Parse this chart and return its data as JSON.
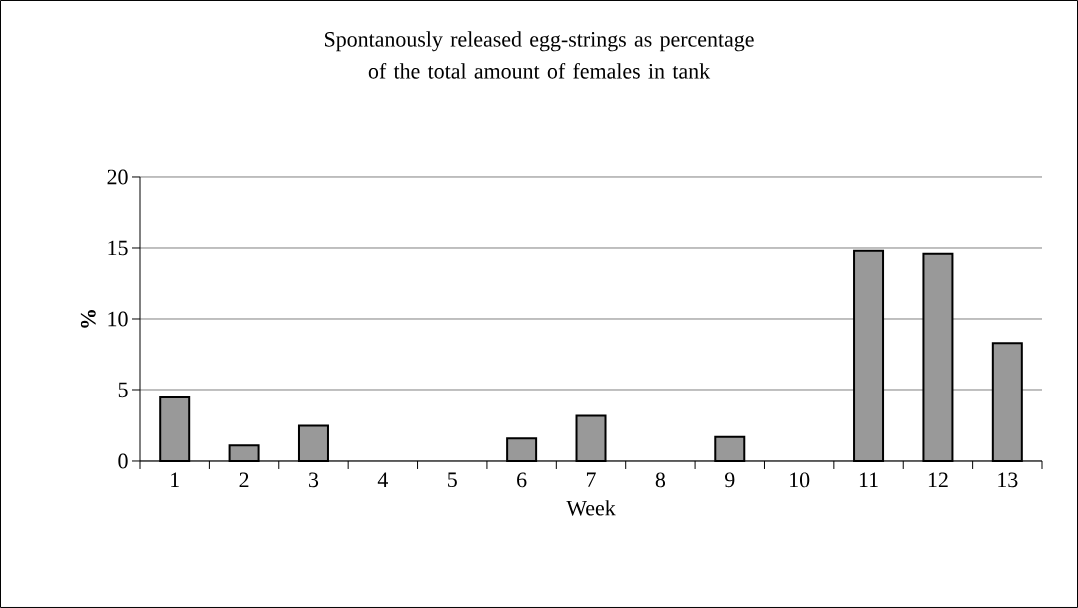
{
  "chart_data": {
    "type": "bar",
    "title": "Spontanously released egg-strings as percentage of the total amount of females in tank",
    "xlabel": "Week",
    "ylabel": "%",
    "categories": [
      "1",
      "2",
      "3",
      "4",
      "5",
      "6",
      "7",
      "8",
      "9",
      "10",
      "11",
      "12",
      "13"
    ],
    "values": [
      4.5,
      1.1,
      2.5,
      0,
      0,
      1.6,
      3.2,
      0,
      1.7,
      0,
      14.8,
      14.6,
      8.3
    ],
    "color": "#999999",
    "ylim": [
      0,
      20
    ],
    "yticks": [
      0,
      5,
      10,
      15,
      20
    ],
    "grid": "y"
  }
}
